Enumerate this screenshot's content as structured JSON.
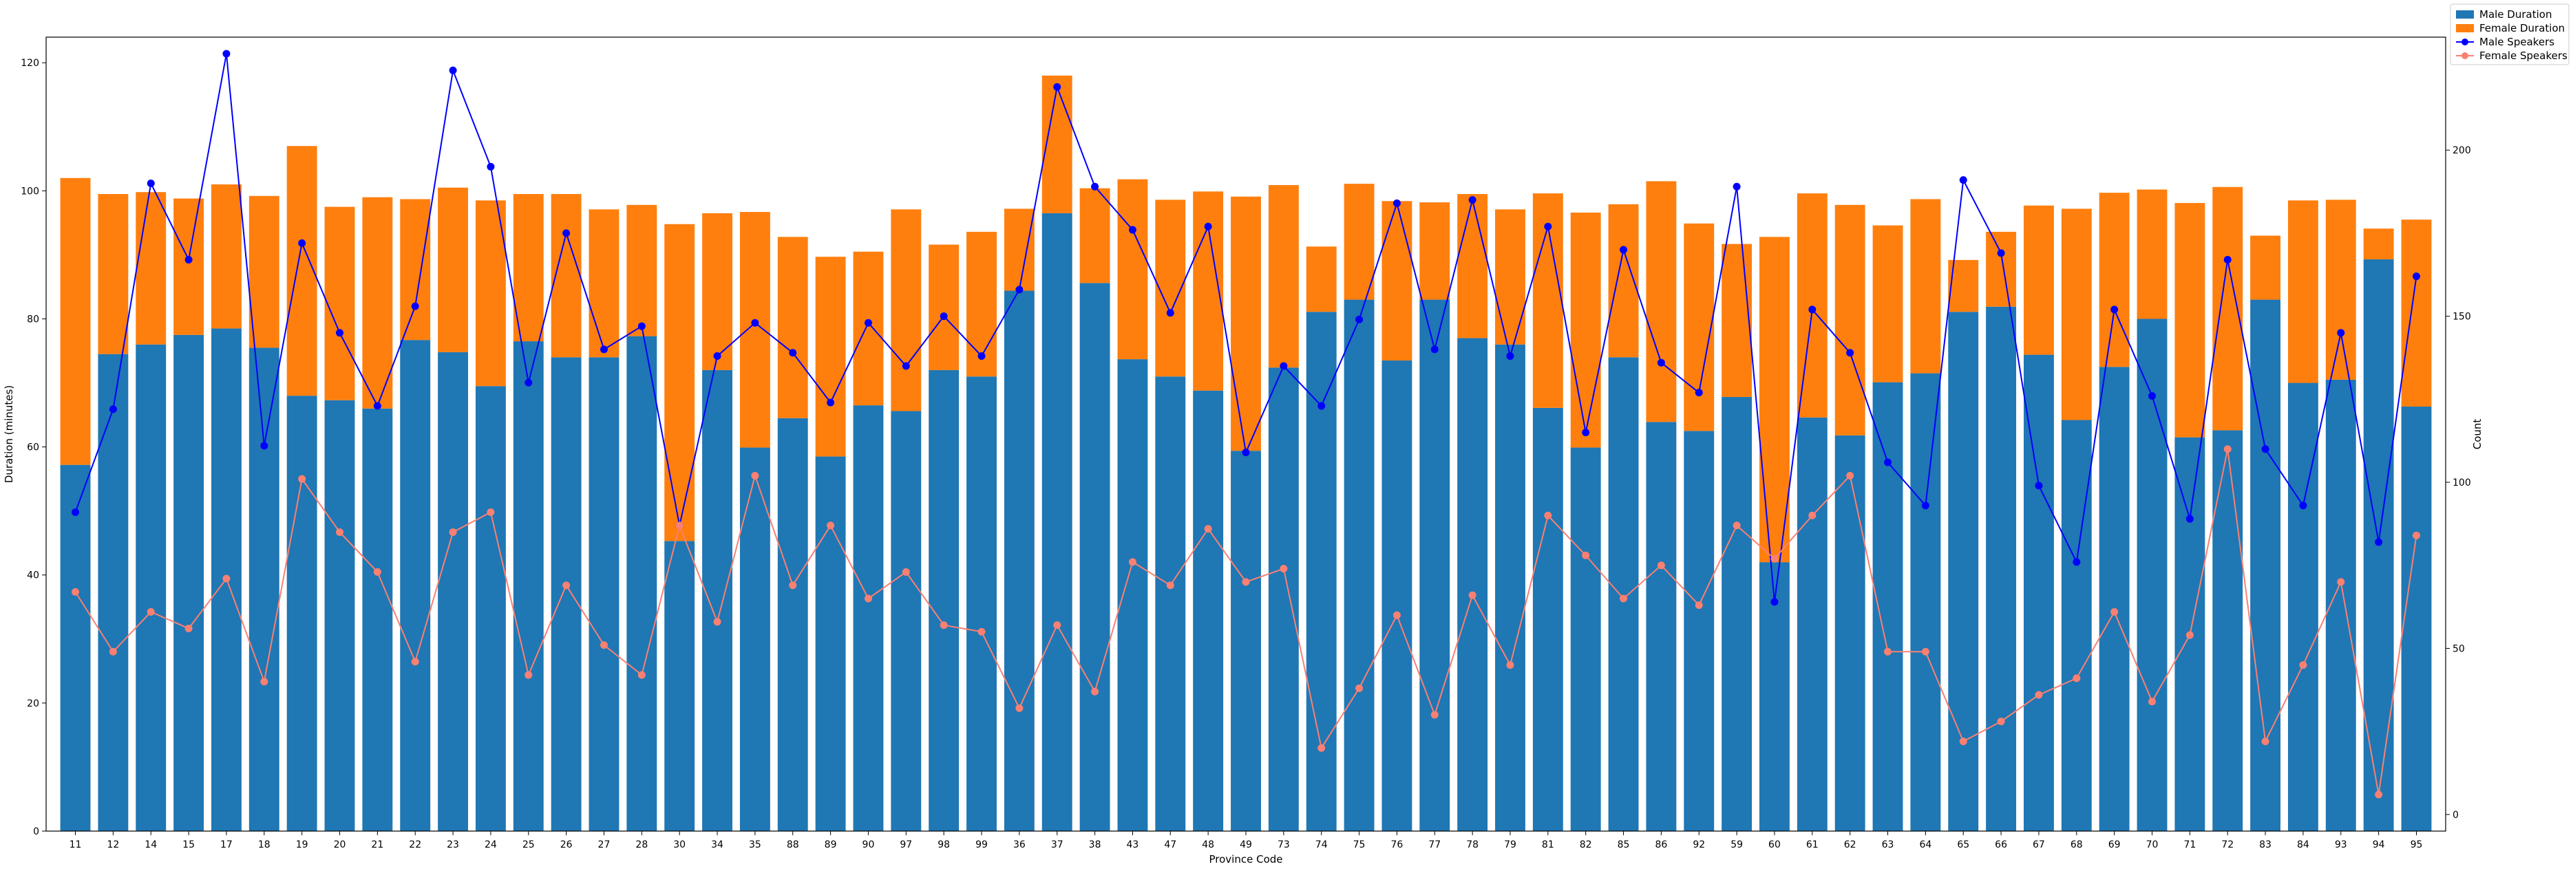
{
  "chart_data": {
    "type": "bar",
    "stacked": true,
    "xlabel": "Province Code",
    "ylabel": "Duration (minutes)",
    "y2label": "Count",
    "ylim": [
      0,
      124
    ],
    "y2lim": [
      -5,
      234
    ],
    "yticks": [
      0,
      20,
      40,
      60,
      80,
      100,
      120
    ],
    "y2ticks": [
      0,
      50,
      100,
      150,
      200
    ],
    "grid": false,
    "legend_position": "top-right",
    "categories": [
      "11",
      "12",
      "14",
      "15",
      "17",
      "18",
      "19",
      "20",
      "21",
      "22",
      "23",
      "24",
      "25",
      "26",
      "27",
      "28",
      "30",
      "34",
      "35",
      "88",
      "89",
      "90",
      "97",
      "98",
      "99",
      "36",
      "37",
      "38",
      "43",
      "47",
      "48",
      "49",
      "73",
      "74",
      "75",
      "76",
      "77",
      "78",
      "79",
      "81",
      "82",
      "85",
      "86",
      "92",
      "59",
      "60",
      "61",
      "62",
      "63",
      "64",
      "65",
      "66",
      "67",
      "68",
      "69",
      "70",
      "71",
      "72",
      "83",
      "84",
      "93",
      "94",
      "95"
    ],
    "series": [
      {
        "name": "Male Duration",
        "kind": "bar",
        "axis": "left",
        "color": "#1f77b4",
        "values": [
          57.2,
          74.5,
          76.0,
          77.5,
          78.5,
          75.5,
          68.0,
          67.3,
          66.0,
          76.7,
          74.8,
          69.5,
          76.5,
          74.0,
          74.0,
          77.3,
          45.3,
          72.0,
          59.9,
          64.5,
          58.5,
          66.5,
          65.6,
          72.0,
          71.0,
          84.4,
          96.5,
          85.6,
          73.7,
          71.0,
          68.8,
          59.4,
          72.4,
          81.1,
          83.0,
          73.5,
          83.0,
          77.0,
          76.0,
          66.1,
          59.9,
          74.0,
          63.9,
          62.5,
          67.8,
          42.0,
          64.6,
          61.8,
          70.1,
          71.5,
          81.1,
          81.9,
          74.4,
          64.2,
          72.5,
          80.0,
          61.5,
          62.6,
          83.0,
          70.0,
          70.5,
          89.3,
          66.3
        ]
      },
      {
        "name": "Female Duration",
        "kind": "bar",
        "axis": "left",
        "color": "#ff7f0e",
        "values": [
          44.8,
          25.0,
          23.8,
          21.3,
          22.5,
          23.7,
          39.0,
          30.2,
          33.0,
          22.0,
          25.7,
          29.0,
          23.0,
          25.5,
          23.1,
          20.5,
          49.5,
          24.5,
          36.8,
          28.3,
          31.2,
          24.0,
          31.5,
          19.6,
          22.6,
          12.8,
          21.5,
          14.8,
          28.1,
          27.6,
          31.1,
          39.7,
          28.5,
          10.2,
          18.1,
          24.9,
          15.2,
          22.5,
          21.1,
          33.5,
          36.7,
          23.9,
          37.6,
          32.4,
          23.9,
          50.8,
          35.0,
          36.0,
          24.5,
          27.2,
          8.1,
          11.7,
          23.3,
          33.0,
          27.2,
          20.2,
          36.6,
          38.0,
          10.0,
          28.5,
          28.1,
          4.8,
          29.2
        ]
      },
      {
        "name": "Male Speakers",
        "kind": "line",
        "axis": "right",
        "color": "#0000ff",
        "values": [
          91,
          122,
          190,
          167,
          229,
          111,
          172,
          145,
          123,
          153,
          224,
          195,
          130,
          175,
          140,
          147,
          87,
          138,
          148,
          139,
          124,
          148,
          135,
          150,
          138,
          158,
          219,
          189,
          176,
          151,
          177,
          109,
          135,
          123,
          149,
          184,
          140,
          185,
          138,
          177,
          115,
          170,
          136,
          127,
          189,
          64,
          152,
          139,
          106,
          93,
          191,
          169,
          99,
          76,
          152,
          126,
          89,
          167,
          110,
          93,
          145,
          82,
          162
        ]
      },
      {
        "name": "Female Speakers",
        "kind": "line",
        "axis": "right",
        "color": "#fa8072",
        "values": [
          67,
          49,
          61,
          56,
          71,
          40,
          101,
          85,
          73,
          46,
          85,
          91,
          42,
          69,
          51,
          42,
          87,
          58,
          102,
          69,
          87,
          65,
          73,
          57,
          55,
          32,
          57,
          37,
          76,
          69,
          86,
          70,
          74,
          20,
          38,
          60,
          30,
          66,
          45,
          90,
          78,
          65,
          75,
          63,
          87,
          77,
          90,
          102,
          49,
          49,
          22,
          28,
          36,
          41,
          61,
          34,
          54,
          110,
          22,
          45,
          70,
          6,
          84
        ]
      }
    ]
  }
}
